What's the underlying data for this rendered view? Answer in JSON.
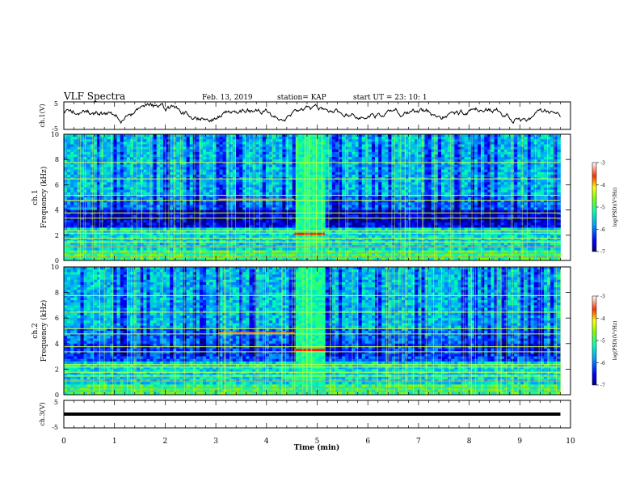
{
  "header": {
    "title": "VLF Spectra",
    "date": "Feb. 13, 2019",
    "station": "station= KAP",
    "start": "start  UT =   23: 10: 1"
  },
  "chart_data": [
    {
      "type": "line",
      "name": "ch1-waveform",
      "ylabel": "ch.1(V)",
      "ylim": [
        -5,
        5
      ],
      "yticks": [
        "5",
        "-5"
      ],
      "xlim": [
        0,
        10
      ],
      "description_values": {
        "mean": 0.5,
        "amplitude": 2.5
      }
    },
    {
      "type": "heatmap",
      "name": "ch1-spectrogram",
      "ylabel_line1": "ch.1",
      "ylabel_line2": "Frequency (kHz)",
      "ylim": [
        0,
        10
      ],
      "yticks": [
        "0",
        "2",
        "4",
        "6",
        "8",
        "10"
      ],
      "xlim": [
        0,
        10
      ],
      "colorbar": {
        "label": "log(PSD)(V²/Hz)",
        "ticks": [
          "-3",
          "-4",
          "-5",
          "-6",
          "-7"
        ],
        "range": [
          -7,
          -3
        ]
      }
    },
    {
      "type": "heatmap",
      "name": "ch2-spectrogram",
      "ylabel_line1": "ch.2",
      "ylabel_line2": "Frequency (kHz)",
      "ylim": [
        0,
        10
      ],
      "yticks": [
        "0",
        "2",
        "4",
        "6",
        "8",
        "10"
      ],
      "xlim": [
        0,
        10
      ],
      "colorbar": {
        "label": "log(PSD)(V²/Hz)",
        "ticks": [
          "-3",
          "-4",
          "-5",
          "-6",
          "-7"
        ],
        "range": [
          -7,
          -3
        ]
      }
    },
    {
      "type": "line",
      "name": "ch3-waveform",
      "ylabel": "ch.3(V)",
      "ylim": [
        -5,
        5
      ],
      "yticks": [
        "5",
        "-5"
      ],
      "xlim": [
        0,
        10
      ],
      "constant_value": 0
    }
  ],
  "xaxis": {
    "label": "Time  (min)",
    "ticks": [
      "0",
      "1",
      "2",
      "3",
      "4",
      "5",
      "6",
      "7",
      "8",
      "9",
      "10"
    ]
  }
}
